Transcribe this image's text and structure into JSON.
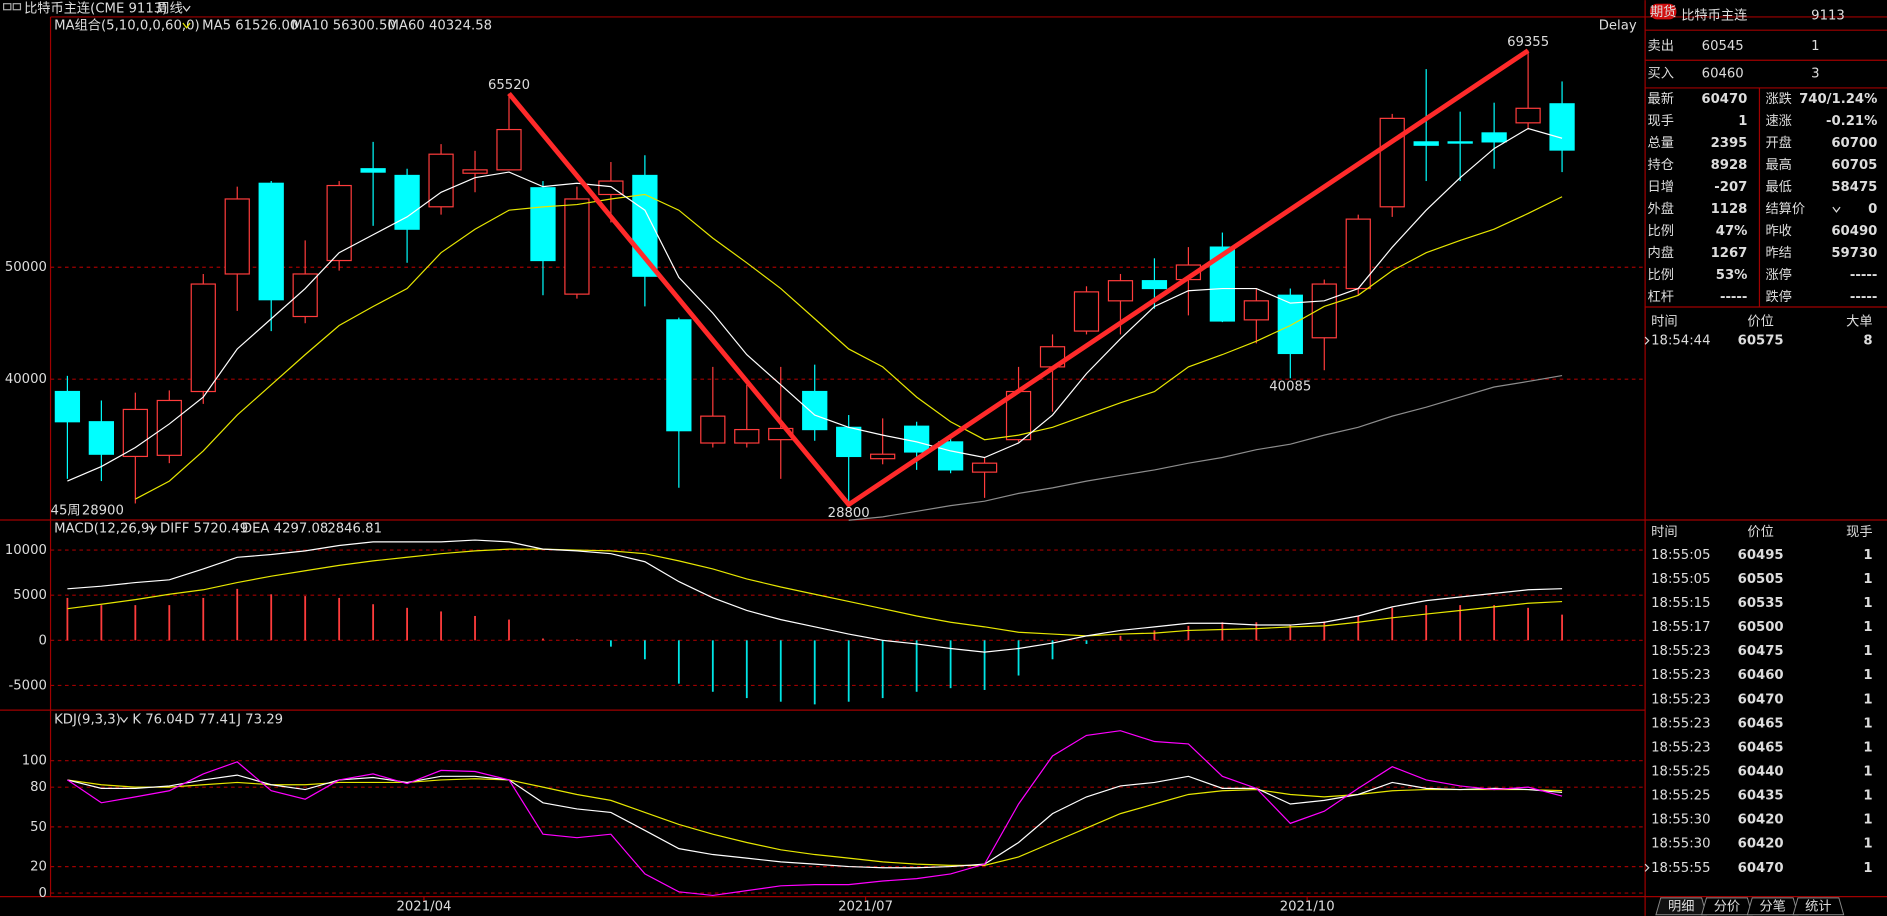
{
  "toolbar": {
    "symbol": "比特币主连(CME 9113)",
    "period": "周线"
  },
  "main": {
    "indicator": "MA组合(5,10,0,0,60,0)",
    "ma5_label": "MA5 61526.00",
    "ma10_label": "MA10 56300.50",
    "ma60_label": "MA60 40324.58",
    "delay": "Delay",
    "period_label": "45周",
    "period_value": "28900",
    "ylim": [
      27425,
      72360
    ],
    "yticks": [
      40000,
      50000
    ],
    "grid": true,
    "up_color": "#ff3c3c",
    "down_color": "#00ffff",
    "ma5_color": "#ffffff",
    "ma10_color": "#e6e600",
    "ma60_color": "#8c8c8c",
    "time_axis": [
      null,
      null,
      null,
      null,
      null,
      null,
      null,
      null,
      null,
      null,
      "2021/04",
      null,
      null,
      null,
      null,
      null,
      null,
      null,
      null,
      null,
      null,
      null,
      null,
      "2021/07",
      null,
      null,
      null,
      null,
      null,
      null,
      null,
      null,
      null,
      null,
      null,
      null,
      "2021/10",
      null,
      null,
      null,
      null,
      null,
      null,
      null,
      null
    ],
    "open": [
      38900,
      36200,
      33100,
      33200,
      38900,
      49400,
      57500,
      45600,
      50600,
      58800,
      58200,
      55400,
      58400,
      58700,
      57100,
      47600,
      56500,
      58200,
      45300,
      34300,
      34300,
      34600,
      38900,
      35700,
      32900,
      35800,
      34400,
      31700,
      34600,
      41100,
      44300,
      47000,
      48800,
      48900,
      51800,
      45300,
      47500,
      43700,
      48100,
      55400,
      61200,
      61200,
      62000,
      62900,
      64600
    ],
    "high": [
      40300,
      38100,
      38800,
      39000,
      49400,
      57200,
      57700,
      52400,
      57700,
      61200,
      58800,
      61000,
      60400,
      65520,
      57700,
      57200,
      59400,
      60000,
      45500,
      41100,
      39500,
      41100,
      41300,
      36800,
      36500,
      36200,
      34900,
      33000,
      41100,
      44000,
      48300,
      49400,
      50800,
      51800,
      53100,
      48100,
      48100,
      48900,
      54700,
      63700,
      67700,
      63900,
      64700,
      69355,
      66600
    ],
    "low": [
      31100,
      30900,
      28900,
      32500,
      37800,
      46100,
      44300,
      45000,
      49700,
      53700,
      50400,
      54700,
      56700,
      58700,
      47500,
      47200,
      54000,
      46500,
      30300,
      33900,
      33900,
      31100,
      34500,
      28800,
      32400,
      31900,
      31600,
      29400,
      34400,
      37100,
      44000,
      44000,
      46300,
      45700,
      45100,
      43200,
      40085,
      40800,
      47500,
      54500,
      57700,
      57700,
      58800,
      62300,
      58500
    ],
    "close": [
      36200,
      33300,
      37300,
      38100,
      48500,
      56100,
      47100,
      49400,
      57300,
      58500,
      53400,
      60100,
      58700,
      62300,
      50600,
      56100,
      57700,
      49200,
      35400,
      36700,
      35500,
      35600,
      35500,
      33100,
      33300,
      33500,
      31900,
      32500,
      38900,
      42900,
      47800,
      48800,
      48100,
      50200,
      45200,
      47000,
      42300,
      48500,
      54300,
      63300,
      60900,
      61100,
      61200,
      64200,
      60470
    ],
    "ma5": [
      30900,
      32200,
      33900,
      36000,
      38400,
      42700,
      45400,
      48100,
      51300,
      52900,
      54500,
      56700,
      58000,
      58500,
      57200,
      57500,
      57200,
      55100,
      49100,
      45900,
      42200,
      39500,
      36800,
      35700,
      35000,
      34400,
      33600,
      33000,
      34300,
      36800,
      40500,
      43600,
      46500,
      47900,
      48100,
      48100,
      46800,
      47000,
      48100,
      51800,
      55100,
      58000,
      60600,
      62400,
      61526
    ],
    "ma10": [
      null,
      null,
      29300,
      30900,
      33600,
      36800,
      39500,
      42200,
      44800,
      46500,
      48100,
      51300,
      53400,
      55100,
      55400,
      55600,
      56100,
      56500,
      55100,
      52600,
      50400,
      48100,
      45400,
      42700,
      41100,
      38400,
      36200,
      34600,
      35000,
      35700,
      36800,
      37900,
      38900,
      41100,
      42200,
      43400,
      44800,
      46500,
      47500,
      49700,
      51300,
      52400,
      53400,
      54800,
      56300.5
    ],
    "ma60": [
      null,
      null,
      null,
      null,
      null,
      null,
      null,
      null,
      null,
      null,
      null,
      null,
      null,
      null,
      null,
      null,
      null,
      null,
      null,
      null,
      null,
      null,
      null,
      27400,
      27700,
      28200,
      28700,
      29100,
      29800,
      30300,
      30900,
      31400,
      31900,
      32500,
      33000,
      33700,
      34200,
      35000,
      35700,
      36700,
      37500,
      38400,
      39300,
      39800,
      40324.58
    ]
  },
  "macd": {
    "indicator": "MACD(12,26,9)",
    "diff_label": "DIFF 5720.49",
    "dea_label": "DEA 4297.08",
    "macd_label": "2846.81",
    "ylim": [
      -7733,
      13333
    ],
    "yticks": [
      -5000,
      0,
      5000,
      10000
    ],
    "grid": true,
    "diff_color": "#ffffff",
    "dea_color": "#e6e600",
    "up_color": "#ff3c3c",
    "down_color": "#00e5e5",
    "diff": [
      5700,
      6000,
      6400,
      6700,
      7900,
      9200,
      9500,
      9900,
      10500,
      10900,
      10900,
      10900,
      11100,
      10900,
      10100,
      9900,
      9600,
      8700,
      6500,
      4700,
      3300,
      2300,
      1500,
      700,
      0,
      -400,
      -900,
      -1300,
      -900,
      -300,
      500,
      1100,
      1500,
      1900,
      1900,
      1700,
      1700,
      2000,
      2700,
      3700,
      4400,
      4800,
      5200,
      5600,
      5720.49
    ],
    "dea": [
      3500,
      4000,
      4500,
      5100,
      5600,
      6400,
      7100,
      7700,
      8300,
      8800,
      9200,
      9600,
      9900,
      10100,
      10100,
      10000,
      9900,
      9600,
      8800,
      7900,
      6800,
      5900,
      5100,
      4300,
      3500,
      2700,
      2000,
      1500,
      900,
      700,
      500,
      700,
      800,
      1100,
      1200,
      1300,
      1500,
      1600,
      2000,
      2500,
      2900,
      3300,
      3700,
      4100,
      4297.08
    ],
    "histogram": [
      4700,
      3900,
      3900,
      3900,
      4700,
      5700,
      5100,
      4900,
      4700,
      4000,
      3600,
      3200,
      2700,
      2300,
      200,
      100,
      -700,
      -2100,
      -4800,
      -5700,
      -6400,
      -6800,
      -7100,
      -6800,
      -6400,
      -5700,
      -5300,
      -5500,
      -3900,
      -2100,
      -400,
      500,
      1100,
      1600,
      2000,
      2000,
      1700,
      2100,
      2700,
      3600,
      3900,
      3900,
      3900,
      3600,
      2846.81
    ]
  },
  "kdj": {
    "indicator": "KDJ(9,3,3)",
    "k_label": "K 76.04",
    "d_label": "D 77.41",
    "j_label": "J 73.29",
    "ylim": [
      -2.7,
      138.2
    ],
    "yticks": [
      0,
      20,
      50,
      80,
      100
    ],
    "grid": true,
    "k_color": "#ffffff",
    "d_color": "#e6e600",
    "j_color": "#ff00ff",
    "k": [
      85.5,
      79.1,
      79.1,
      80.9,
      85.5,
      89.1,
      81.8,
      78.2,
      85.5,
      87.3,
      83.6,
      88.2,
      88.2,
      85.5,
      68.2,
      63.6,
      60.9,
      47.3,
      33.6,
      29.1,
      26.4,
      23.6,
      21.8,
      20,
      19.1,
      19.1,
      20,
      21.8,
      38.2,
      60,
      72.7,
      80.9,
      83.6,
      88.2,
      79.1,
      79.1,
      67.3,
      70,
      74.5,
      83.6,
      79.1,
      78.2,
      79.1,
      78.2,
      76.04
    ],
    "d": [
      85.5,
      81.8,
      80,
      80,
      81.8,
      83.6,
      81.8,
      81.8,
      83.6,
      83.6,
      83.6,
      85.5,
      86.4,
      85.5,
      80,
      74.5,
      70,
      60.9,
      51.8,
      44.5,
      38.2,
      32.7,
      29.1,
      26.4,
      23.6,
      21.8,
      20.9,
      20.9,
      27.3,
      38.2,
      49.1,
      60,
      67.3,
      74.5,
      77.3,
      78.2,
      74.5,
      72.7,
      74.5,
      77.3,
      78.2,
      78.2,
      78.2,
      78.2,
      77.41
    ],
    "j": [
      85.5,
      68.2,
      72.7,
      77.3,
      90,
      99.1,
      77.3,
      70.9,
      85.5,
      90,
      82.7,
      92.7,
      91.8,
      85.5,
      44.5,
      41.8,
      44.5,
      14.5,
      0.9,
      -1.8,
      1.8,
      5.5,
      6.4,
      6.4,
      9.1,
      10.9,
      14.5,
      21.8,
      67.3,
      103.6,
      119.1,
      122.7,
      114.5,
      112.7,
      88.2,
      79.1,
      52.7,
      61.8,
      79.1,
      95.5,
      85.5,
      80.9,
      78.2,
      80,
      73.29
    ]
  },
  "quote": {
    "badge": "期货",
    "name": "比特币主连",
    "code": "9113",
    "sell": {
      "label": "卖出",
      "price": "60545",
      "qty": "1"
    },
    "buy": {
      "label": "买入",
      "price": "60460",
      "qty": "3"
    },
    "stats": [
      [
        {
          "label": "最新",
          "value": "60470",
          "color": "#ff3c3c"
        },
        {
          "label": "涨跌",
          "value": "740/1.24%",
          "color": "#ff3c3c"
        }
      ],
      [
        {
          "label": "现手",
          "value": "1",
          "color": "#ffff00"
        },
        {
          "label": "速涨",
          "value": "-0.21%",
          "color": "#00ff00"
        }
      ],
      [
        {
          "label": "总量",
          "value": "2395",
          "color": "#ffff00"
        },
        {
          "label": "开盘",
          "value": "60700",
          "color": "#ff3c3c"
        }
      ],
      [
        {
          "label": "持仓",
          "value": "8928",
          "color": "#ffff00"
        },
        {
          "label": "最高",
          "value": "60705",
          "color": "#ff3c3c"
        }
      ],
      [
        {
          "label": "日增",
          "value": "-207",
          "color": "#ffff00"
        },
        {
          "label": "最低",
          "value": "58475",
          "color": "#00ff00"
        }
      ],
      [
        {
          "label": "外盘",
          "value": "1128",
          "color": "#ffff00"
        },
        {
          "label": "结算价",
          "value": "0",
          "color": "#ffffff"
        }
      ],
      [
        {
          "label": "比例",
          "value": "47%",
          "color": "#ffff00"
        },
        {
          "label": "昨收",
          "value": "60490",
          "color": "#ffffff"
        }
      ],
      [
        {
          "label": "内盘",
          "value": "1267",
          "color": "#ffff00"
        },
        {
          "label": "昨结",
          "value": "59730",
          "color": "#ffffff"
        }
      ],
      [
        {
          "label": "比例",
          "value": "53%",
          "color": "#ffff00"
        },
        {
          "label": "涨停",
          "value": "-----",
          "color": "#ff3c3c"
        }
      ],
      [
        {
          "label": "杠杆",
          "value": "-----",
          "color": "#ffff00"
        },
        {
          "label": "跌停",
          "value": "-----",
          "color": "#00ff00"
        }
      ]
    ],
    "big_orders": {
      "headers": [
        "时间",
        "价位",
        "大单"
      ],
      "rows": [
        {
          "time": "18:54:44",
          "price": "60575",
          "volume": "8",
          "color": "#ff3c3c"
        }
      ]
    },
    "ticks": {
      "headers": [
        "时间",
        "价位",
        "现手"
      ],
      "rows": [
        {
          "time": "18:55:05",
          "price": "60495",
          "volume": "1",
          "color": "#00ff00"
        },
        {
          "time": "18:55:05",
          "price": "60505",
          "volume": "1",
          "color": "#00ff00"
        },
        {
          "time": "18:55:15",
          "price": "60535",
          "volume": "1",
          "color": "#00ff00"
        },
        {
          "time": "18:55:17",
          "price": "60500",
          "volume": "1",
          "color": "#00ff00"
        },
        {
          "time": "18:55:23",
          "price": "60475",
          "volume": "1",
          "color": "#00ff00"
        },
        {
          "time": "18:55:23",
          "price": "60460",
          "volume": "1",
          "color": "#00ff00"
        },
        {
          "time": "18:55:23",
          "price": "60470",
          "volume": "1",
          "color": "#00ff00"
        },
        {
          "time": "18:55:23",
          "price": "60465",
          "volume": "1",
          "color": "#00ff00"
        },
        {
          "time": "18:55:23",
          "price": "60465",
          "volume": "1",
          "color": "#00ff00"
        },
        {
          "time": "18:55:25",
          "price": "60440",
          "volume": "1",
          "color": "#00ff00"
        },
        {
          "time": "18:55:25",
          "price": "60435",
          "volume": "1",
          "color": "#00ff00"
        },
        {
          "time": "18:55:30",
          "price": "60420",
          "volume": "1",
          "color": "#00ff00"
        },
        {
          "time": "18:55:30",
          "price": "60420",
          "volume": "1",
          "color": "#00ff00"
        },
        {
          "time": "18:55:55",
          "price": "60470",
          "volume": "1",
          "color": "#ff3c3c"
        }
      ]
    },
    "tabs": [
      "明细",
      "分价",
      "分笔",
      "统计"
    ]
  }
}
